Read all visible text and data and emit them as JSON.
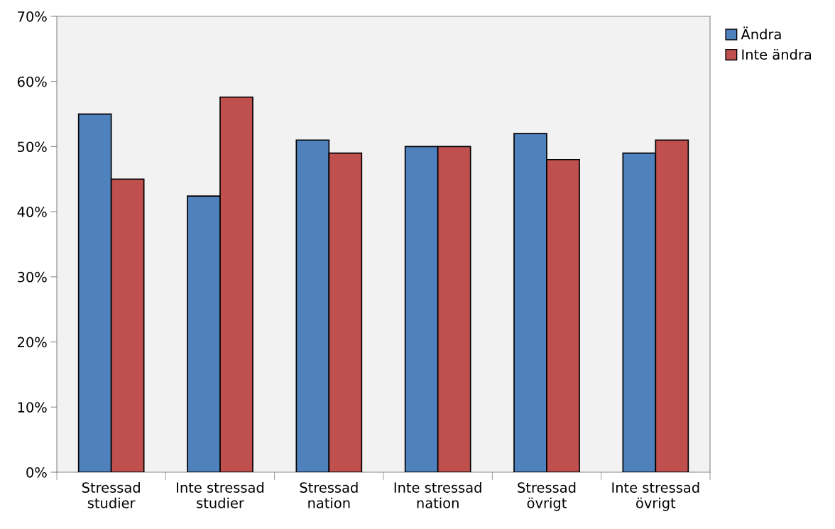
{
  "chart_data": {
    "type": "bar",
    "categories": [
      "Stressad\nstudier",
      "Inte stressad\nstudier",
      "Stressad\nnation",
      "Inte stressad\nnation",
      "Stressad\növrigt",
      "Inte stressad\növrigt"
    ],
    "series": [
      {
        "name": "Ändra",
        "color": "#4f81bd",
        "values": [
          55,
          42.4,
          51,
          50,
          52,
          49
        ]
      },
      {
        "name": "Inte ändra",
        "color": "#c0504d",
        "values": [
          45,
          57.6,
          49,
          50,
          48,
          51
        ]
      }
    ],
    "ylim": [
      0,
      70
    ],
    "yticks": [
      {
        "value": 0,
        "label": "0%"
      },
      {
        "value": 10,
        "label": "10%"
      },
      {
        "value": 20,
        "label": "20%"
      },
      {
        "value": 30,
        "label": "30%"
      },
      {
        "value": 40,
        "label": "40%"
      },
      {
        "value": 50,
        "label": "50%"
      },
      {
        "value": 60,
        "label": "60%"
      },
      {
        "value": 70,
        "label": "70%"
      }
    ],
    "grid": false,
    "legend": "top right"
  }
}
